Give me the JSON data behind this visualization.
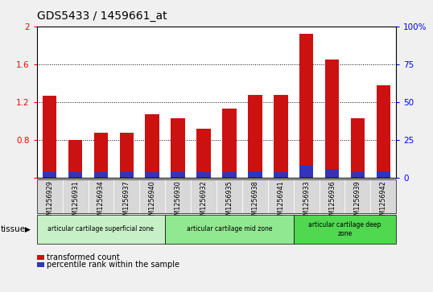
{
  "title": "GDS5433 / 1459661_at",
  "samples": [
    "GSM1256929",
    "GSM1256931",
    "GSM1256934",
    "GSM1256937",
    "GSM1256940",
    "GSM1256930",
    "GSM1256932",
    "GSM1256935",
    "GSM1256938",
    "GSM1256941",
    "GSM1256933",
    "GSM1256936",
    "GSM1256939",
    "GSM1256942"
  ],
  "transformed_count": [
    1.27,
    0.8,
    0.88,
    0.88,
    1.07,
    1.03,
    0.92,
    1.13,
    1.28,
    1.28,
    1.92,
    1.65,
    1.03,
    1.38
  ],
  "percentile_rank_scaled": [
    0.466,
    0.466,
    0.466,
    0.466,
    0.466,
    0.466,
    0.466,
    0.466,
    0.475,
    0.466,
    0.535,
    0.496,
    0.466,
    0.475
  ],
  "groups": [
    {
      "label": "articular cartilage superficial zone",
      "start": 0,
      "end": 4,
      "color": "#c8f0c8"
    },
    {
      "label": "articular cartilage mid zone",
      "start": 5,
      "end": 9,
      "color": "#90e890"
    },
    {
      "label": "articular cartilage deep\nzone",
      "start": 10,
      "end": 13,
      "color": "#50d850"
    }
  ],
  "ylim_left": [
    0.4,
    2.0
  ],
  "ylim_right": [
    0,
    100
  ],
  "yticks_left": [
    0.4,
    0.8,
    1.2,
    1.6,
    2.0
  ],
  "yticks_right": [
    0,
    25,
    50,
    75,
    100
  ],
  "bar_color_red": "#cc1111",
  "bar_color_blue": "#3333bb",
  "bar_width": 0.55,
  "background_color": "#f0f0f0",
  "plot_bg_color": "#ffffff",
  "tissue_label": "tissue",
  "legend_red": "transformed count",
  "legend_blue": "percentile rank within the sample",
  "gridline_vals": [
    0.8,
    1.2,
    1.6
  ]
}
